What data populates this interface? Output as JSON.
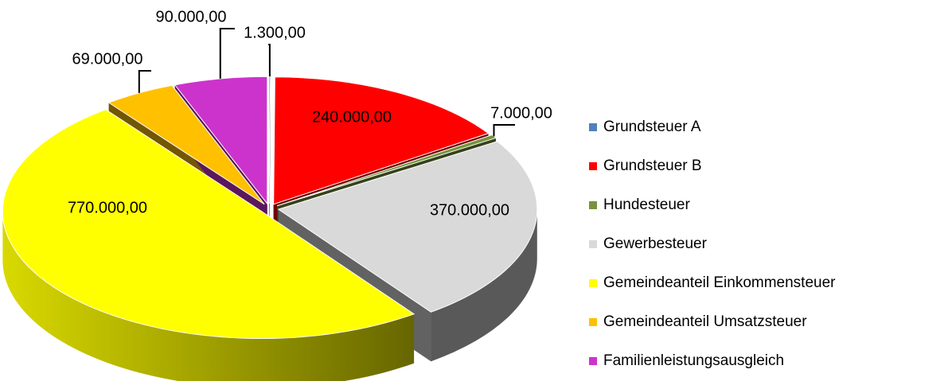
{
  "chart_data": {
    "type": "pie3d",
    "categories": [
      "Grundsteuer A",
      "Grundsteuer B",
      "Hundesteuer",
      "Gewerbesteuer",
      "Gemeindeanteil Einkommensteuer",
      "Gemeindeanteil Umsatzsteuer",
      "Familienleistungsausgleich"
    ],
    "values": [
      1300,
      240000,
      7000,
      370000,
      770000,
      69000,
      90000
    ],
    "value_labels": [
      "1.300,00",
      "240.000,00",
      "7.000,00",
      "370.000,00",
      "770.000,00",
      "69.000,00",
      "90.000,00"
    ],
    "colors": [
      "#4f81bd",
      "#ff0000",
      "#77933c",
      "#d9d9d9",
      "#ffff00",
      "#ffc000",
      "#cc33cc"
    ],
    "legend": "right"
  }
}
